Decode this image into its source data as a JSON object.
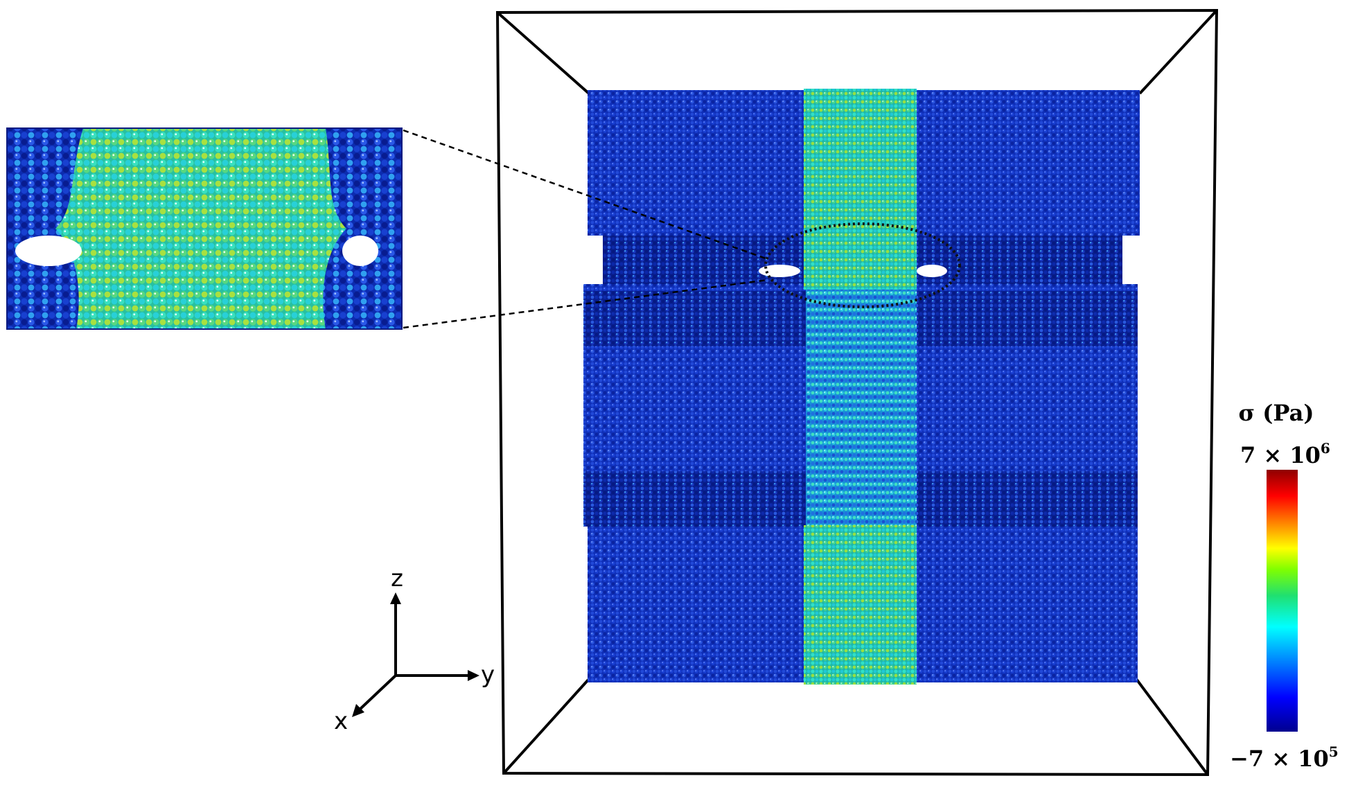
{
  "axes": {
    "z": "z",
    "y": "y",
    "x": "x"
  },
  "colorbar": {
    "title": "σ (Pa)",
    "max_label": "7 × 10",
    "max_exp": "6",
    "min_label": "−7 × 10",
    "min_exp": "5",
    "max_value": 7000000,
    "min_value": -700000,
    "stops": [
      "#00008f",
      "#0000ff",
      "#00a0ff",
      "#00ffff",
      "#20e070",
      "#80ff00",
      "#ffff00",
      "#ff8000",
      "#ff0000",
      "#8f0000"
    ]
  },
  "colors": {
    "low": "#1030c8",
    "mid": "#30d0c0",
    "high": "#c0e020",
    "frame": "#000000"
  }
}
